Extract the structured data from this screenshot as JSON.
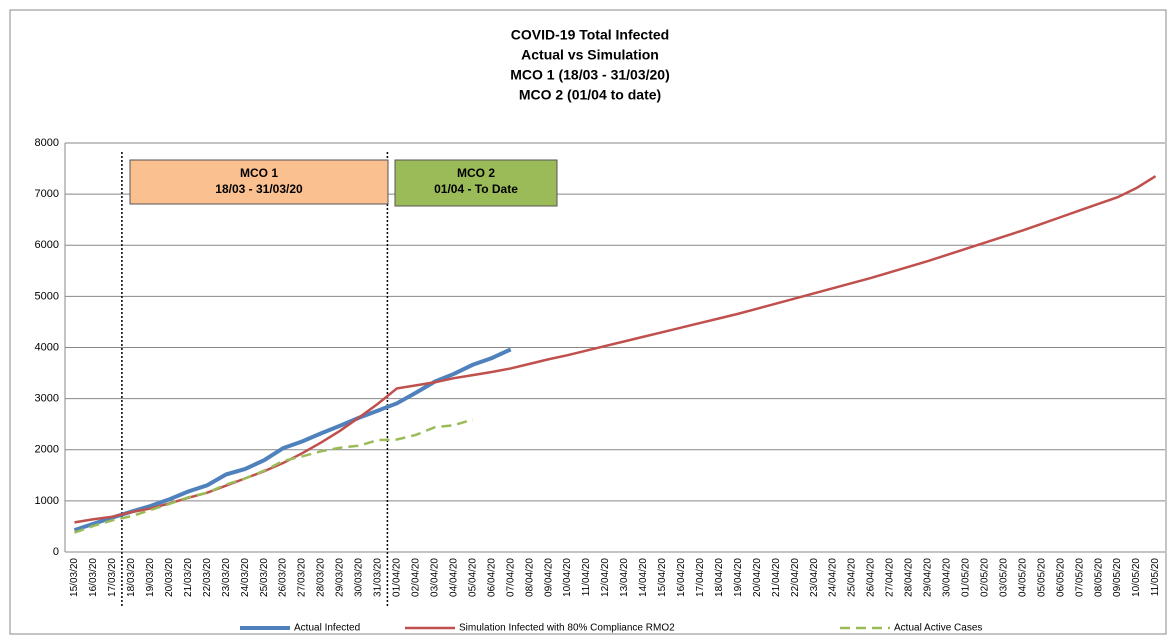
{
  "chart_data": {
    "type": "line",
    "title": [
      "COVID-19 Total Infected",
      "Actual vs Simulation",
      "MCO 1 (18/03 - 31/03/20)",
      "MCO 2 (01/04 to date)"
    ],
    "annotations": [
      {
        "title": "MCO 1",
        "text": "18/03 - 31/03/20",
        "color": "#fac090"
      },
      {
        "title": "MCO 2",
        "text": "01/04 - To Date",
        "color": "#9bbb59"
      }
    ],
    "categories": [
      "15/03/20",
      "16/03/20",
      "17/03/20",
      "18/03/20",
      "19/03/20",
      "20/03/20",
      "21/03/20",
      "22/03/20",
      "23/03/20",
      "24/03/20",
      "25/03/20",
      "26/03/20",
      "27/03/20",
      "28/03/20",
      "29/03/20",
      "30/03/20",
      "31/03/20",
      "01/04/20",
      "02/04/20",
      "03/04/20",
      "04/04/20",
      "05/04/20",
      "06/04/20",
      "07/04/20",
      "08/04/20",
      "09/04/20",
      "10/04/20",
      "11/04/20",
      "12/04/20",
      "13/04/20",
      "14/04/20",
      "15/04/20",
      "16/04/20",
      "17/04/20",
      "18/04/20",
      "19/04/20",
      "20/04/20",
      "21/04/20",
      "22/04/20",
      "23/04/20",
      "24/04/20",
      "25/04/20",
      "26/04/20",
      "27/04/20",
      "28/04/20",
      "29/04/20",
      "30/04/20",
      "01/05/20",
      "02/05/20",
      "03/05/20",
      "04/05/20",
      "05/05/20",
      "06/05/20",
      "07/05/20",
      "08/05/20",
      "09/05/20",
      "10/05/20",
      "11/05/20"
    ],
    "series": [
      {
        "name": "Actual Infected",
        "color": "#4f81bd",
        "dash": false,
        "values": [
          428,
          553,
          673,
          790,
          900,
          1030,
          1183,
          1306,
          1518,
          1624,
          1796,
          2031,
          2161,
          2320,
          2470,
          2626,
          2766,
          2908,
          3116,
          3333,
          3483,
          3662,
          3793,
          3963,
          null,
          null,
          null,
          null,
          null,
          null,
          null,
          null,
          null,
          null,
          null,
          null,
          null,
          null,
          null,
          null,
          null,
          null,
          null,
          null,
          null,
          null,
          null,
          null,
          null,
          null,
          null,
          null,
          null,
          null,
          null,
          null,
          null,
          null
        ]
      },
      {
        "name": "Simulation Infected with 80% Compliance RMO2",
        "color": "#c0504d",
        "dash": false,
        "values": [
          580,
          640,
          690,
          780,
          850,
          950,
          1060,
          1160,
          1300,
          1440,
          1580,
          1740,
          1930,
          2140,
          2370,
          2630,
          2900,
          3200,
          3260,
          3320,
          3400,
          3460,
          3520,
          3590,
          3680,
          3770,
          3850,
          3940,
          4030,
          4120,
          4210,
          4300,
          4390,
          4480,
          4570,
          4660,
          4760,
          4860,
          4960,
          5060,
          5160,
          5260,
          5360,
          5470,
          5580,
          5690,
          5810,
          5930,
          6050,
          6170,
          6290,
          6420,
          6550,
          6680,
          6810,
          6940,
          7120,
          7350
        ]
      },
      {
        "name": "Actual Active Cases",
        "color": "#9bbb59",
        "dash": true,
        "values": [
          380,
          510,
          620,
          700,
          820,
          940,
          1070,
          1160,
          1320,
          1440,
          1590,
          1780,
          1870,
          1970,
          2040,
          2080,
          2190,
          2200,
          2290,
          2440,
          2480,
          2590,
          null,
          null,
          null,
          null,
          null,
          null,
          null,
          null,
          null,
          null,
          null,
          null,
          null,
          null,
          null,
          null,
          null,
          null,
          null,
          null,
          null,
          null,
          null,
          null,
          null,
          null,
          null,
          null,
          null,
          null,
          null,
          null,
          null,
          null,
          null,
          null
        ]
      }
    ],
    "ylim": [
      0,
      8000
    ],
    "yticks": [
      0,
      1000,
      2000,
      3000,
      4000,
      5000,
      6000,
      7000,
      8000
    ],
    "grid": true
  }
}
